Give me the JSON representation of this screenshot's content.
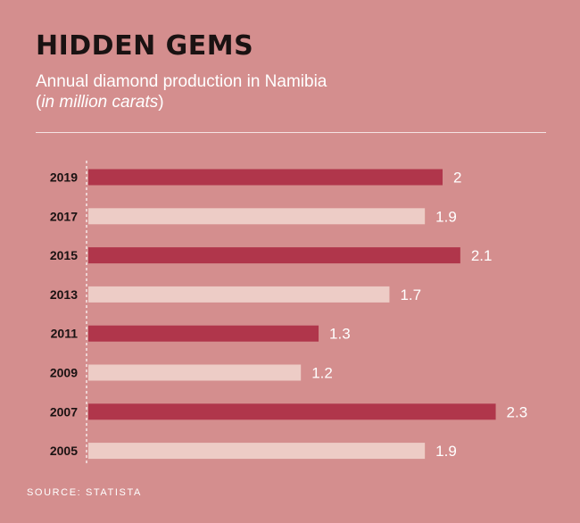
{
  "header": {
    "title": "HIDDEN GEMS",
    "subtitle": "Annual diamond production in Namibia",
    "unit_open": "(",
    "unit": "in million carats",
    "unit_close": ")"
  },
  "footer": {
    "source": "SOURCE: STATISTA"
  },
  "colors": {
    "background": "#d48e8e",
    "bar_dark": "#b0364b",
    "bar_light": "#edccc6"
  },
  "chart_data": {
    "type": "bar",
    "orientation": "horizontal",
    "categories": [
      "2019",
      "2017",
      "2015",
      "2013",
      "2011",
      "2009",
      "2007",
      "2005"
    ],
    "values": [
      2,
      1.9,
      2.1,
      1.7,
      1.3,
      1.2,
      2.3,
      1.9
    ],
    "title": "HIDDEN GEMS",
    "subtitle": "Annual diamond production in Namibia (in million carats)",
    "xlabel": "",
    "ylabel": "",
    "grid": false,
    "legend": "none"
  }
}
